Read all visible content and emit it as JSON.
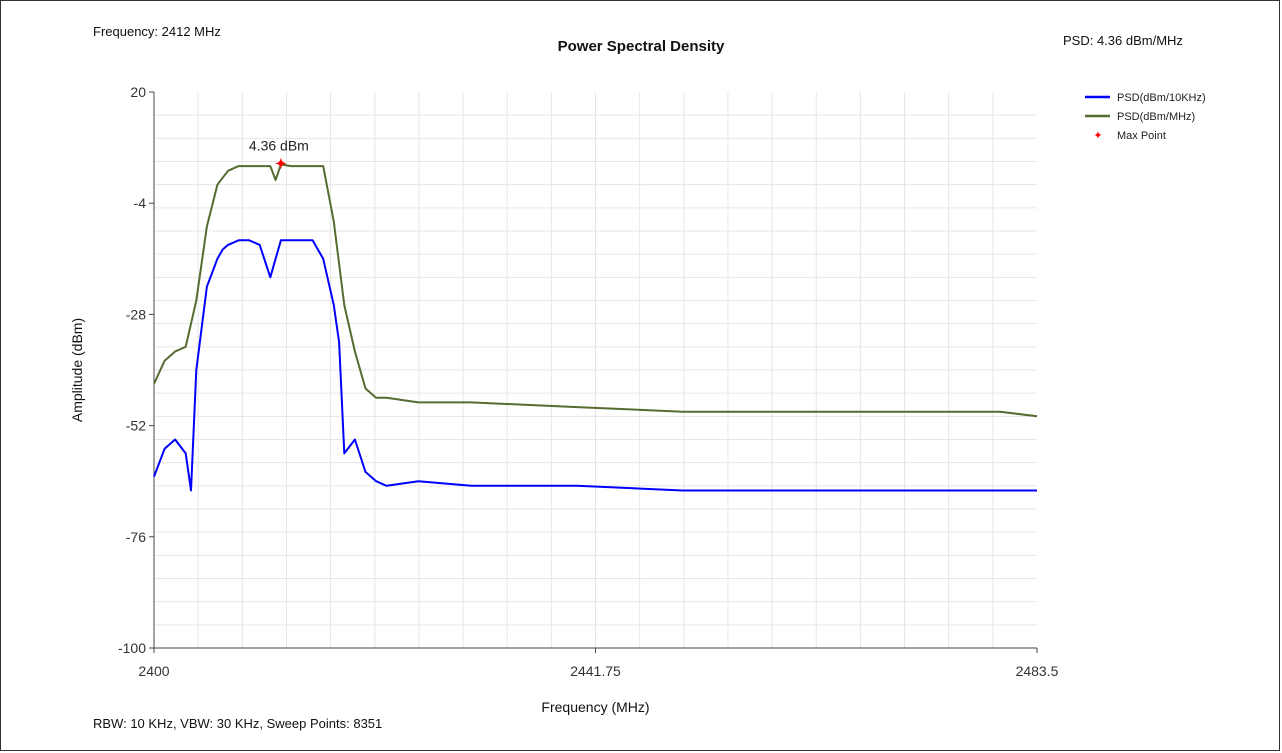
{
  "header": {
    "frequency_readout": "Frequency: 2412 MHz",
    "psd_readout": "PSD: 4.36 dBm/MHz"
  },
  "footer": {
    "info": "RBW: 10 KHz,  VBW: 30 KHz,  Sweep Points: 8351"
  },
  "colors": {
    "series_10khz": "#0000ff",
    "series_mhz": "#556b2f",
    "max_point": "#ff0000",
    "grid": "#e6e6e6",
    "axis": "#444444"
  },
  "chart_data": {
    "type": "line",
    "title": "Power Spectral Density",
    "xlabel": "Frequency (MHz)",
    "ylabel": "Amplitude (dBm)",
    "xlim": [
      2400,
      2483.5
    ],
    "ylim": [
      -100,
      20
    ],
    "x_ticks": [
      "2400",
      "2441.75",
      "2483.5"
    ],
    "y_ticks": [
      "20",
      "-4",
      "-28",
      "-52",
      "-76",
      "-100"
    ],
    "grid": true,
    "legend_position": "top-right",
    "series": [
      {
        "name": "PSD(dBm/10KHz)",
        "color": "#0000ff",
        "x": [
          2400,
          2401,
          2402,
          2403,
          2403.5,
          2404,
          2405,
          2406,
          2406.5,
          2407,
          2408,
          2409,
          2410,
          2411,
          2411.5,
          2412,
          2413,
          2414,
          2415,
          2416,
          2417,
          2417.5,
          2418,
          2419,
          2420,
          2421,
          2422,
          2425,
          2430,
          2440,
          2450,
          2460,
          2470,
          2483.5
        ],
        "y": [
          -63,
          -57,
          -55,
          -58,
          -66,
          -40,
          -22,
          -16,
          -14,
          -13,
          -12,
          -12,
          -13,
          -20,
          -16,
          -12,
          -12,
          -12,
          -12,
          -16,
          -26,
          -34,
          -58,
          -55,
          -62,
          -64,
          -65,
          -64,
          -65,
          -65,
          -66,
          -66,
          -66,
          -66
        ]
      },
      {
        "name": "PSD(dBm/MHz)",
        "color": "#556b2f",
        "x": [
          2400,
          2401,
          2402,
          2403,
          2404,
          2405,
          2406,
          2407,
          2408,
          2409,
          2410,
          2411,
          2411.5,
          2412,
          2413,
          2414,
          2415,
          2416,
          2417,
          2418,
          2419,
          2420,
          2421,
          2422,
          2425,
          2430,
          2440,
          2450,
          2460,
          2470,
          2480,
          2483.5
        ],
        "y": [
          -43,
          -38,
          -36,
          -35,
          -25,
          -9,
          0,
          3,
          4,
          4,
          4,
          4,
          1,
          4.36,
          4,
          4,
          4,
          4,
          -8,
          -26,
          -36,
          -44,
          -46,
          -46,
          -47,
          -47,
          -48,
          -49,
          -49,
          -49,
          -49,
          -50
        ]
      }
    ],
    "max_point": {
      "name": "Max Point",
      "x": 2412,
      "y": 4.36,
      "label": "4.36 dBm"
    }
  }
}
